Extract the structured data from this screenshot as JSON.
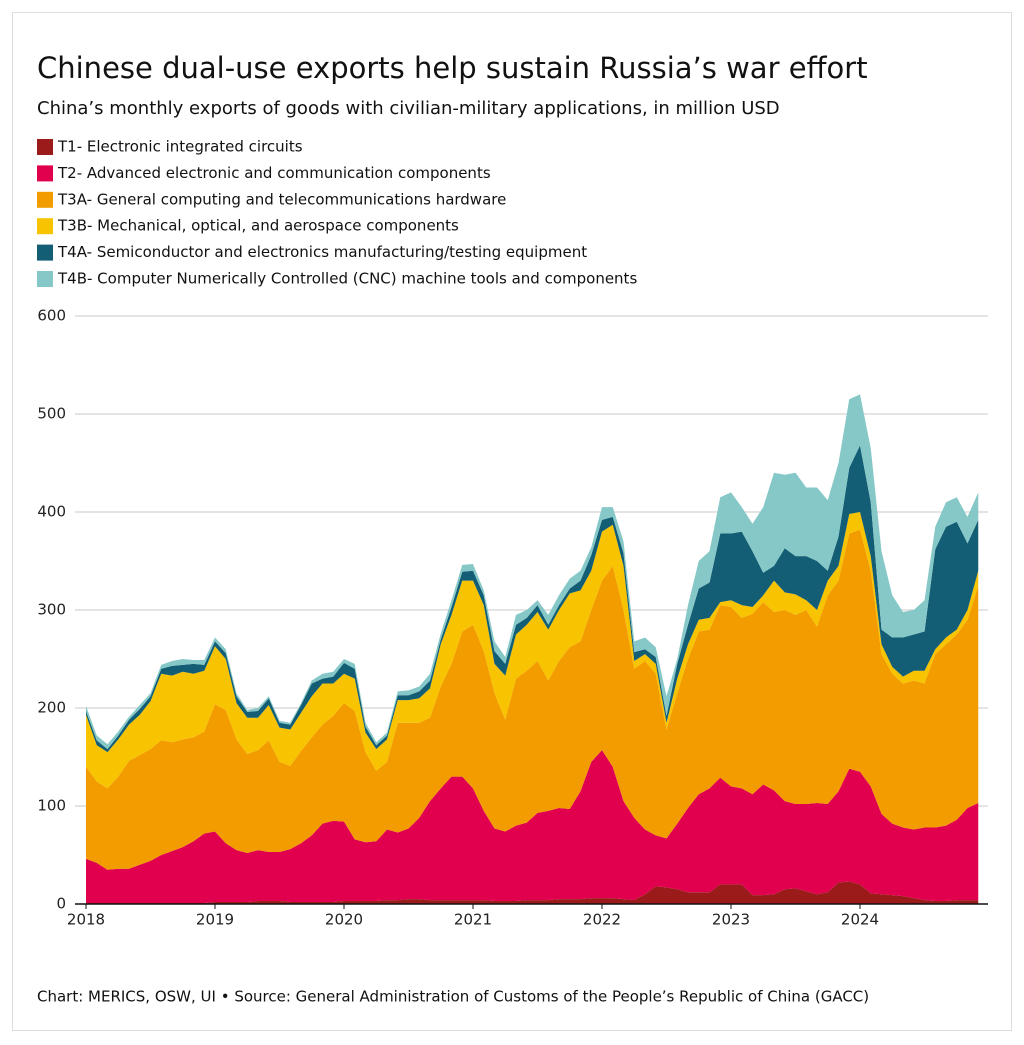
{
  "chart_data": {
    "type": "area",
    "stacked": true,
    "title": "Chinese dual-use exports help sustain Russia’s war effort",
    "subtitle": "China’s monthly exports of goods with civilian-military applications, in million USD",
    "source": "Chart: MERICS, OSW, UI • Source: General Administration of Customs of the People’s Republic of China (GACC)",
    "categories": [
      "2018",
      null,
      null,
      null,
      null,
      null,
      null,
      null,
      null,
      null,
      null,
      null,
      "2019",
      null,
      null,
      null,
      null,
      null,
      null,
      null,
      null,
      null,
      null,
      null,
      "2020",
      null,
      null,
      null,
      null,
      null,
      null,
      null,
      null,
      null,
      null,
      null,
      "2021",
      null,
      null,
      null,
      null,
      null,
      null,
      null,
      null,
      null,
      null,
      null,
      "2022",
      null,
      null,
      null,
      null,
      null,
      null,
      null,
      null,
      null,
      null,
      null,
      "2023",
      null,
      null,
      null,
      null,
      null,
      null,
      null,
      null,
      null,
      null,
      null,
      "2024",
      null,
      null,
      null,
      null,
      null,
      null,
      null,
      null,
      null,
      null,
      null
    ],
    "ylim": [
      0,
      600
    ],
    "yticks": [
      0,
      100,
      200,
      300,
      400,
      500,
      600
    ],
    "grid": true,
    "series": [
      {
        "name": "T1- Electronic integrated circuits",
        "color": "#9b1b1b",
        "values": [
          1,
          1,
          1,
          1,
          1,
          1,
          1,
          1,
          1,
          1,
          1,
          1,
          2,
          2,
          2,
          2,
          3,
          3,
          3,
          2,
          2,
          2,
          2,
          2,
          3,
          3,
          3,
          3,
          4,
          4,
          5,
          5,
          4,
          4,
          4,
          4,
          4,
          4,
          3,
          3,
          3,
          4,
          4,
          4,
          5,
          5,
          5,
          6,
          6,
          6,
          5,
          4,
          10,
          18,
          17,
          15,
          12,
          12,
          12,
          20,
          20,
          20,
          9,
          9,
          10,
          15,
          16,
          13,
          10,
          12,
          22,
          23,
          20,
          11,
          10,
          9,
          8,
          6,
          4,
          3,
          3,
          4,
          4,
          4
        ]
      },
      {
        "name": "T2- Advanced electronic and communication components",
        "color": "#e0004d",
        "values": [
          45,
          41,
          34,
          35,
          35,
          39,
          43,
          49,
          53,
          57,
          63,
          71,
          72,
          60,
          53,
          50,
          52,
          50,
          50,
          54,
          60,
          68,
          80,
          83,
          81,
          63,
          60,
          61,
          72,
          69,
          72,
          83,
          101,
          114,
          126,
          126,
          114,
          91,
          74,
          71,
          77,
          79,
          89,
          91,
          93,
          92,
          110,
          139,
          151,
          134,
          100,
          84,
          66,
          52,
          50,
          67,
          86,
          100,
          106,
          109,
          100,
          98,
          103,
          113,
          106,
          90,
          86,
          89,
          93,
          90,
          93,
          115,
          115,
          109,
          82,
          73,
          70,
          70,
          74,
          75,
          77,
          82,
          94,
          99
        ]
      },
      {
        "name": "T3A- General computing and telecommunications hardware",
        "color": "#f29c00",
        "values": [
          94,
          83,
          83,
          94,
          110,
          112,
          114,
          117,
          111,
          110,
          106,
          104,
          130,
          136,
          113,
          101,
          102,
          114,
          92,
          85,
          94,
          100,
          101,
          107,
          121,
          131,
          92,
          72,
          69,
          112,
          108,
          97,
          85,
          104,
          115,
          148,
          167,
          163,
          138,
          114,
          150,
          155,
          155,
          133,
          150,
          165,
          153,
          155,
          173,
          205,
          195,
          152,
          172,
          165,
          111,
          133,
          152,
          166,
          162,
          176,
          183,
          174,
          184,
          186,
          182,
          195,
          193,
          198,
          180,
          213,
          215,
          240,
          247,
          220,
          163,
          153,
          147,
          152,
          147,
          177,
          185,
          189,
          192,
          222
        ]
      },
      {
        "name": "T3B- Mechanical, optical, and aerospace components",
        "color": "#f8c300",
        "values": [
          53,
          37,
          37,
          38,
          37,
          41,
          49,
          68,
          68,
          69,
          65,
          62,
          59,
          52,
          37,
          37,
          33,
          36,
          35,
          37,
          39,
          42,
          42,
          33,
          30,
          33,
          20,
          22,
          23,
          23,
          23,
          25,
          30,
          43,
          50,
          52,
          45,
          47,
          30,
          45,
          45,
          47,
          50,
          52,
          52,
          55,
          52,
          40,
          50,
          42,
          45,
          8,
          7,
          10,
          7,
          15,
          15,
          12,
          12,
          3,
          7,
          13,
          7,
          7,
          32,
          18,
          21,
          10,
          17,
          15,
          15,
          20,
          18,
          15,
          10,
          7,
          7,
          10,
          13,
          5,
          7,
          5,
          10,
          15
        ]
      },
      {
        "name": "T4A- Semiconductor and electronics manufacturing/testing equipment",
        "color": "#135e75",
        "values": [
          4,
          5,
          3,
          4,
          5,
          6,
          5,
          5,
          10,
          7,
          10,
          6,
          5,
          6,
          7,
          6,
          7,
          7,
          5,
          5,
          8,
          13,
          5,
          7,
          11,
          10,
          6,
          4,
          4,
          5,
          5,
          7,
          8,
          5,
          8,
          9,
          10,
          10,
          13,
          12,
          10,
          7,
          7,
          5,
          5,
          5,
          10,
          16,
          12,
          8,
          13,
          9,
          5,
          7,
          7,
          15,
          20,
          32,
          36,
          70,
          68,
          75,
          57,
          23,
          15,
          45,
          39,
          45,
          50,
          10,
          30,
          47,
          68,
          55,
          15,
          30,
          40,
          37,
          40,
          102,
          113,
          110,
          68,
          52
        ]
      },
      {
        "name": "T4B- Computer Numerically Controlled (CNC) machine tools and components",
        "color": "#86c8c8",
        "values": [
          5,
          5,
          5,
          4,
          3,
          4,
          3,
          4,
          5,
          6,
          4,
          5,
          4,
          4,
          3,
          2,
          3,
          2,
          2,
          2,
          2,
          3,
          5,
          5,
          4,
          5,
          4,
          3,
          3,
          4,
          5,
          5,
          7,
          6,
          7,
          7,
          7,
          5,
          10,
          7,
          10,
          8,
          5,
          10,
          10,
          10,
          10,
          8,
          13,
          10,
          12,
          11,
          12,
          10,
          20,
          5,
          20,
          28,
          32,
          37,
          42,
          25,
          28,
          67,
          95,
          75,
          85,
          70,
          75,
          72,
          75,
          70,
          52,
          55,
          80,
          43,
          26,
          25,
          32,
          23,
          25,
          25,
          27,
          28
        ]
      }
    ]
  }
}
